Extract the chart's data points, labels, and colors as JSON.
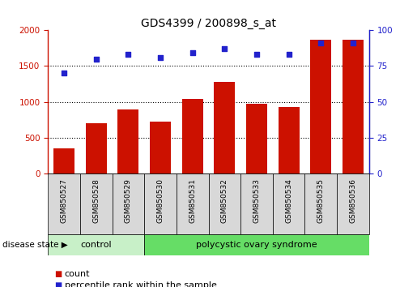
{
  "title": "GDS4399 / 200898_s_at",
  "samples": [
    "GSM850527",
    "GSM850528",
    "GSM850529",
    "GSM850530",
    "GSM850531",
    "GSM850532",
    "GSM850533",
    "GSM850534",
    "GSM850535",
    "GSM850536"
  ],
  "counts": [
    350,
    700,
    900,
    730,
    1040,
    1280,
    970,
    930,
    1870,
    1870
  ],
  "percentiles": [
    70,
    80,
    83,
    81,
    84,
    87,
    83,
    83,
    91,
    91
  ],
  "bar_color": "#cc1100",
  "dot_color": "#2222cc",
  "control_samples": 3,
  "control_label": "control",
  "disease_label": "polycystic ovary syndrome",
  "disease_state_label": "disease state",
  "legend_count": "count",
  "legend_percentile": "percentile rank within the sample",
  "ylim_left": [
    0,
    2000
  ],
  "ylim_right": [
    0,
    100
  ],
  "yticks_left": [
    0,
    500,
    1000,
    1500,
    2000
  ],
  "yticks_right": [
    0,
    25,
    50,
    75,
    100
  ],
  "grid_values": [
    500,
    1000,
    1500
  ],
  "bar_width": 0.65,
  "bg_control": "#c8f0c8",
  "bg_disease": "#66dd66",
  "title_fontsize": 10,
  "tick_fontsize": 7.5,
  "label_fontsize": 8,
  "legend_fontsize": 8
}
